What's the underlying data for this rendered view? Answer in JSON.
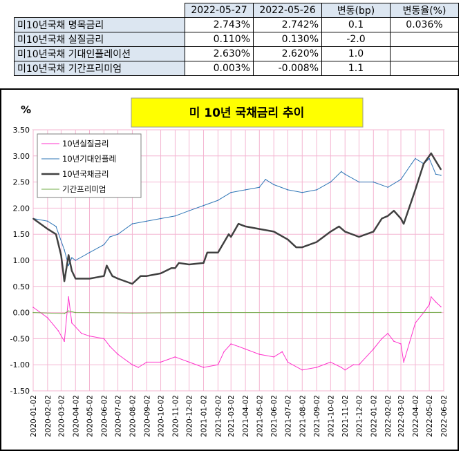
{
  "table": {
    "headers": [
      "",
      "2022-05-27",
      "2022-05-26",
      "변동(bp)",
      "변동율(%)"
    ],
    "rows": [
      {
        "label": "미10년국채 명목금리",
        "v1": "2.743%",
        "v2": "2.742%",
        "bp": "0.1",
        "pct": "0.036%"
      },
      {
        "label": "미10년국채 실질금리",
        "v1": "0.110%",
        "v2": "0.130%",
        "bp": "-2.0",
        "pct": ""
      },
      {
        "label": "미10년국채 기대인플레이션",
        "v1": "2.630%",
        "v2": "2.620%",
        "bp": "1.0",
        "pct": ""
      },
      {
        "label": "미10년국채 기간프리미엄",
        "v1": "0.003%",
        "v2": "-0.008%",
        "bp": "1.1",
        "pct": ""
      }
    ]
  },
  "chart_data": {
    "type": "line",
    "title": "미 10년 국채금리 추이",
    "ylabel": "%",
    "ylim": [
      -1.5,
      3.5
    ],
    "yticks": [
      "3.50",
      "3.00",
      "2.50",
      "2.00",
      "1.50",
      "1.00",
      "0.50",
      "0.00",
      "-0.50",
      "-1.00",
      "-1.50"
    ],
    "xticks": [
      "2020-01-02",
      "2020-02-02",
      "2020-03-02",
      "2020-04-02",
      "2020-05-02",
      "2020-06-02",
      "2020-07-02",
      "2020-08-02",
      "2020-09-02",
      "2020-10-02",
      "2020-11-02",
      "2020-12-02",
      "2021-01-02",
      "2021-02-02",
      "2021-03-02",
      "2021-04-02",
      "2021-05-02",
      "2021-06-02",
      "2021-07-02",
      "2021-08-02",
      "2021-09-02",
      "2021-10-02",
      "2021-11-02",
      "2021-12-02",
      "2022-01-02",
      "2022-02-02",
      "2022-03-02",
      "2022-04-02",
      "2022-05-02",
      "2022-06-02"
    ],
    "grid": true,
    "legend_position": "top-left",
    "series": [
      {
        "name": "10년실질금리",
        "color": "#ff33cc",
        "width": 1,
        "x": [
          "2020-01-02",
          "2020-02-02",
          "2020-02-25",
          "2020-03-09",
          "2020-03-18",
          "2020-03-25",
          "2020-04-15",
          "2020-05-02",
          "2020-06-02",
          "2020-06-15",
          "2020-07-02",
          "2020-08-02",
          "2020-08-15",
          "2020-09-02",
          "2020-10-02",
          "2020-11-02",
          "2020-12-02",
          "2021-01-02",
          "2021-02-02",
          "2021-02-15",
          "2021-03-02",
          "2021-03-18",
          "2021-04-02",
          "2021-05-02",
          "2021-06-02",
          "2021-06-20",
          "2021-07-02",
          "2021-08-02",
          "2021-09-02",
          "2021-10-02",
          "2021-10-25",
          "2021-11-02",
          "2021-11-20",
          "2021-12-02",
          "2022-01-02",
          "2022-01-20",
          "2022-02-02",
          "2022-02-15",
          "2022-03-02",
          "2022-03-08",
          "2022-04-02",
          "2022-04-20",
          "2022-05-02",
          "2022-05-06",
          "2022-05-16",
          "2022-05-27"
        ],
        "y": [
          0.1,
          -0.1,
          -0.35,
          -0.55,
          0.3,
          -0.2,
          -0.4,
          -0.45,
          -0.5,
          -0.65,
          -0.8,
          -1.0,
          -1.05,
          -0.95,
          -0.95,
          -0.85,
          -0.95,
          -1.05,
          -1.0,
          -0.75,
          -0.6,
          -0.65,
          -0.7,
          -0.8,
          -0.85,
          -0.75,
          -0.95,
          -1.1,
          -1.05,
          -0.95,
          -1.05,
          -1.1,
          -1.0,
          -1.0,
          -0.7,
          -0.5,
          -0.4,
          -0.55,
          -0.6,
          -0.95,
          -0.2,
          0.0,
          0.15,
          0.3,
          0.2,
          0.11
        ]
      },
      {
        "name": "10년기대인플레",
        "color": "#2e75b6",
        "width": 1,
        "x": [
          "2020-01-02",
          "2020-02-02",
          "2020-02-20",
          "2020-03-09",
          "2020-03-18",
          "2020-03-25",
          "2020-04-02",
          "2020-05-02",
          "2020-06-02",
          "2020-06-15",
          "2020-07-02",
          "2020-08-02",
          "2020-09-02",
          "2020-10-02",
          "2020-11-02",
          "2020-12-02",
          "2021-01-02",
          "2021-02-02",
          "2021-03-02",
          "2021-04-02",
          "2021-05-02",
          "2021-05-15",
          "2021-06-02",
          "2021-07-02",
          "2021-08-02",
          "2021-09-02",
          "2021-10-02",
          "2021-10-25",
          "2021-11-02",
          "2021-12-02",
          "2022-01-02",
          "2022-02-02",
          "2022-03-02",
          "2022-03-25",
          "2022-04-02",
          "2022-04-20",
          "2022-05-02",
          "2022-05-16",
          "2022-05-27"
        ],
        "y": [
          1.8,
          1.75,
          1.65,
          1.2,
          0.9,
          1.05,
          1.0,
          1.15,
          1.3,
          1.45,
          1.5,
          1.7,
          1.75,
          1.8,
          1.85,
          1.95,
          2.05,
          2.15,
          2.3,
          2.35,
          2.4,
          2.55,
          2.45,
          2.35,
          2.3,
          2.35,
          2.5,
          2.7,
          2.65,
          2.5,
          2.5,
          2.4,
          2.55,
          2.85,
          2.95,
          2.85,
          2.95,
          2.65,
          2.63
        ]
      },
      {
        "name": "10년국채금리",
        "color": "#404040",
        "width": 2.5,
        "x": [
          "2020-01-02",
          "2020-02-02",
          "2020-02-20",
          "2020-03-02",
          "2020-03-09",
          "2020-03-18",
          "2020-03-25",
          "2020-04-02",
          "2020-05-02",
          "2020-06-02",
          "2020-06-08",
          "2020-06-20",
          "2020-07-02",
          "2020-08-02",
          "2020-08-20",
          "2020-09-02",
          "2020-10-02",
          "2020-10-25",
          "2020-11-02",
          "2020-11-10",
          "2020-12-02",
          "2021-01-02",
          "2021-01-10",
          "2021-02-02",
          "2021-02-25",
          "2021-03-02",
          "2021-03-18",
          "2021-04-02",
          "2021-05-02",
          "2021-06-02",
          "2021-07-02",
          "2021-07-20",
          "2021-08-02",
          "2021-09-02",
          "2021-10-02",
          "2021-10-20",
          "2021-11-02",
          "2021-12-02",
          "2022-01-02",
          "2022-01-20",
          "2022-02-02",
          "2022-02-15",
          "2022-03-02",
          "2022-03-08",
          "2022-04-02",
          "2022-04-20",
          "2022-05-02",
          "2022-05-06",
          "2022-05-16",
          "2022-05-27"
        ],
        "y": [
          1.8,
          1.6,
          1.5,
          1.1,
          0.6,
          1.1,
          0.8,
          0.65,
          0.65,
          0.7,
          0.9,
          0.7,
          0.65,
          0.55,
          0.7,
          0.7,
          0.75,
          0.85,
          0.85,
          0.95,
          0.92,
          0.95,
          1.15,
          1.15,
          1.5,
          1.45,
          1.7,
          1.65,
          1.6,
          1.55,
          1.4,
          1.25,
          1.25,
          1.35,
          1.55,
          1.65,
          1.55,
          1.45,
          1.55,
          1.8,
          1.85,
          1.95,
          1.8,
          1.7,
          2.35,
          2.85,
          3.0,
          3.05,
          2.9,
          2.74
        ]
      },
      {
        "name": "기간프리미엄",
        "color": "#70ad47",
        "width": 1,
        "x": [
          "2020-01-02",
          "2020-03-09",
          "2020-03-18",
          "2020-04-02",
          "2020-08-02",
          "2021-01-02",
          "2021-06-02",
          "2022-01-02",
          "2022-05-27"
        ],
        "y": [
          0.0,
          -0.02,
          0.03,
          0.0,
          -0.01,
          0.0,
          0.0,
          0.0,
          0.003
        ]
      }
    ]
  }
}
